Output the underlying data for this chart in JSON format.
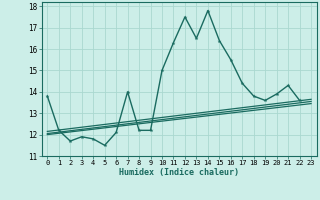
{
  "title": "",
  "xlabel": "Humidex (Indice chaleur)",
  "ylabel": "",
  "bg_color": "#cceee8",
  "line_color": "#1a6b60",
  "grid_color": "#aad8d0",
  "xlim": [
    -0.5,
    23.5
  ],
  "ylim": [
    11,
    18.2
  ],
  "yticks": [
    11,
    12,
    13,
    14,
    15,
    16,
    17,
    18
  ],
  "xticks": [
    0,
    1,
    2,
    3,
    4,
    5,
    6,
    7,
    8,
    9,
    10,
    11,
    12,
    13,
    14,
    15,
    16,
    17,
    18,
    19,
    20,
    21,
    22,
    23
  ],
  "xtick_labels": [
    "0",
    "1",
    "2",
    "3",
    "4",
    "5",
    "6",
    "7",
    "8",
    "9",
    "10",
    "11",
    "12",
    "13",
    "14",
    "15",
    "16",
    "17",
    "18",
    "19",
    "20",
    "21",
    "22",
    "23"
  ],
  "main_series": {
    "x": [
      0,
      1,
      2,
      3,
      4,
      5,
      6,
      7,
      8,
      9,
      10,
      11,
      12,
      13,
      14,
      15,
      16,
      17,
      18,
      19,
      20,
      21,
      22
    ],
    "y": [
      13.8,
      12.2,
      11.7,
      11.9,
      11.8,
      11.5,
      12.1,
      14.0,
      12.2,
      12.2,
      15.0,
      16.3,
      17.5,
      16.5,
      17.8,
      16.4,
      15.5,
      14.4,
      13.8,
      13.6,
      13.9,
      14.3,
      13.6
    ]
  },
  "linear_lines": [
    {
      "x": [
        0,
        23
      ],
      "y": [
        12.0,
        13.45
      ]
    },
    {
      "x": [
        0,
        23
      ],
      "y": [
        12.05,
        13.55
      ]
    },
    {
      "x": [
        0,
        23
      ],
      "y": [
        12.15,
        13.65
      ]
    }
  ]
}
